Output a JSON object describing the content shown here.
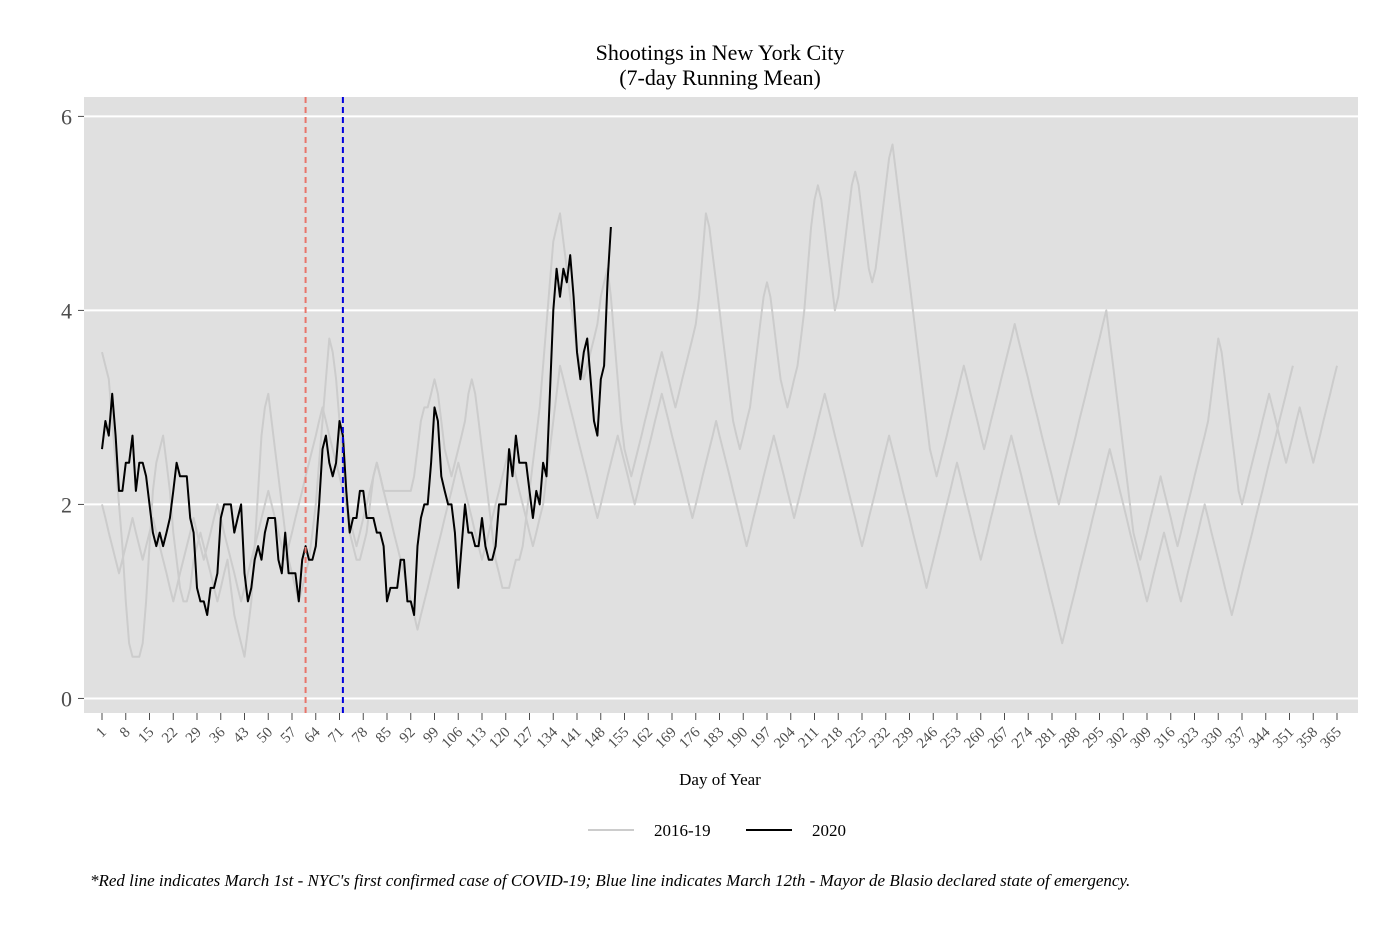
{
  "chart_data": {
    "type": "line",
    "title_line1": "Shootings in New York City",
    "title_line2": "(7-day Running Mean)",
    "xlabel": "Day of Year",
    "ylabel": "",
    "xlim": [
      1,
      365
    ],
    "ylim": [
      -0.15,
      6.2
    ],
    "y_ticks": [
      0,
      2,
      4,
      6
    ],
    "x_tick_start": 1,
    "x_tick_step": 7,
    "x_ticks": [
      1,
      8,
      15,
      22,
      29,
      36,
      43,
      50,
      57,
      64,
      71,
      78,
      85,
      92,
      99,
      106,
      113,
      120,
      127,
      134,
      141,
      148,
      155,
      162,
      169,
      176,
      183,
      190,
      197,
      204,
      211,
      218,
      225,
      232,
      239,
      246,
      253,
      260,
      267,
      274,
      281,
      288,
      295,
      302,
      309,
      316,
      323,
      330,
      337,
      344,
      351,
      358,
      365
    ],
    "grid": true,
    "background": "#e0e0e0",
    "legend_position": "bottom",
    "legend": [
      {
        "label": "2016-19",
        "color": "#cccccc"
      },
      {
        "label": "2020",
        "color": "#000000"
      }
    ],
    "vlines": [
      {
        "x": 61,
        "color": "#e8756b",
        "style": "dashed"
      },
      {
        "x": 72,
        "color": "#0000dd",
        "style": "dashed"
      }
    ],
    "series": [
      {
        "name": "2016-19",
        "color": "#cccccc",
        "y": [
          3.57,
          3.43,
          3.29,
          2.86,
          2.43,
          2.0,
          1.57,
          1.0,
          0.57,
          0.43,
          0.43,
          0.43,
          0.57,
          1.0,
          1.57,
          2.14,
          2.43,
          2.57,
          2.71,
          2.43,
          2.14,
          1.71,
          1.43,
          1.14,
          1.0,
          1.0,
          1.14,
          1.43,
          1.57,
          1.71,
          1.57,
          1.43,
          1.29,
          1.14,
          1.0,
          1.14,
          1.29,
          1.43,
          1.14,
          0.86,
          0.71,
          0.57,
          0.43,
          0.71,
          1.0,
          1.57,
          2.14,
          2.71,
          3.0,
          3.14,
          2.86,
          2.57,
          2.29,
          2.0,
          1.71,
          1.43,
          1.29,
          1.14,
          1.0,
          1.14,
          1.29,
          1.43,
          1.71,
          2.0,
          2.43,
          2.86,
          3.29,
          3.71,
          3.57,
          3.29,
          2.86,
          2.43,
          2.0,
          1.71,
          1.57,
          1.43,
          1.43,
          1.57,
          1.71,
          2.0,
          2.29,
          2.43,
          2.29,
          2.14,
          2.14,
          2.14,
          2.14,
          2.14,
          2.14,
          2.14,
          2.14,
          2.14,
          2.29,
          2.57,
          2.86,
          3.0,
          3.0,
          3.14,
          3.29,
          3.14,
          2.86,
          2.57,
          2.43,
          2.29,
          2.43,
          2.57,
          2.71,
          2.86,
          3.14,
          3.29,
          3.14,
          2.86,
          2.57,
          2.29,
          2.0,
          1.71,
          1.43,
          1.29,
          1.14,
          1.14,
          1.14,
          1.29,
          1.43,
          1.43,
          1.57,
          1.86,
          2.14,
          2.43,
          2.71,
          3.0,
          3.43,
          3.86,
          4.29,
          4.71,
          4.86,
          5.0,
          4.71,
          4.43,
          4.14,
          3.86,
          3.57,
          3.43,
          3.29,
          3.43,
          3.57,
          3.71,
          3.86,
          4.14,
          4.29,
          4.43,
          4.14,
          3.71,
          3.29,
          2.86,
          2.57,
          2.43,
          2.29,
          2.43,
          2.57,
          2.71,
          2.86,
          3.0,
          3.14,
          3.29,
          3.43,
          3.57,
          3.43,
          3.29,
          3.14,
          3.0,
          3.14,
          3.29,
          3.43,
          3.57,
          3.71,
          3.86,
          4.14,
          4.57,
          5.0,
          4.86,
          4.57,
          4.29,
          4.0,
          3.71,
          3.43,
          3.14,
          2.86,
          2.71,
          2.57,
          2.71,
          2.86,
          3.0,
          3.29,
          3.57,
          3.86,
          4.14,
          4.29,
          4.14,
          3.86,
          3.57,
          3.29,
          3.14,
          3.0,
          3.14,
          3.29,
          3.43,
          3.71,
          4.0,
          4.43,
          4.86,
          5.14,
          5.29,
          5.14,
          4.86,
          4.57,
          4.29,
          4.0,
          4.14,
          4.43,
          4.71,
          5.0,
          5.29,
          5.43,
          5.29,
          5.0,
          4.71,
          4.43,
          4.29,
          4.43,
          4.71,
          5.0,
          5.29,
          5.57,
          5.71,
          5.43,
          5.14,
          4.86,
          4.57,
          4.29,
          4.0,
          3.71,
          3.43,
          3.14,
          2.86,
          2.57,
          2.43,
          2.29,
          2.43,
          2.57,
          2.71,
          2.86,
          3.0,
          3.14,
          3.29,
          3.43,
          3.29,
          3.14,
          3.0,
          2.86,
          2.71,
          2.57,
          2.71,
          2.86,
          3.0,
          3.14,
          3.29,
          3.43,
          3.57,
          3.71,
          3.86,
          3.71,
          3.57,
          3.43,
          3.29,
          3.14,
          3.0,
          2.86,
          2.71,
          2.57,
          2.43,
          2.29,
          2.14,
          2.0,
          2.14,
          2.29,
          2.43,
          2.57,
          2.71,
          2.86,
          3.0,
          3.14,
          3.29,
          3.43,
          3.57,
          3.71,
          3.86,
          4.0,
          3.71,
          3.43,
          3.14,
          2.86,
          2.57,
          2.29,
          2.0,
          1.71,
          1.57,
          1.43,
          1.57,
          1.71,
          1.86,
          2.0,
          2.14,
          2.29,
          2.14,
          2.0,
          1.86,
          1.71,
          1.57,
          1.71,
          1.86,
          2.0,
          2.14,
          2.29,
          2.43,
          2.57,
          2.71,
          2.86,
          3.14,
          3.43,
          3.71,
          3.57,
          3.29,
          3.0,
          2.71,
          2.43,
          2.14,
          2.0,
          2.14,
          2.29,
          2.43,
          2.57,
          2.71,
          2.86,
          3.0,
          3.14,
          3.0,
          2.86,
          2.71,
          2.57,
          2.43,
          2.57,
          2.71,
          2.86,
          3.0,
          2.86,
          2.71,
          2.57,
          2.43,
          2.57,
          2.71,
          2.86,
          3.0,
          3.14,
          3.29,
          3.43
        ]
      },
      {
        "name": "2016-19",
        "color": "#cccccc",
        "y": [
          2.0,
          1.86,
          1.71,
          1.57,
          1.43,
          1.29,
          1.43,
          1.57,
          1.71,
          1.86,
          1.71,
          1.57,
          1.43,
          1.57,
          1.71,
          1.86,
          1.71,
          1.57,
          1.43,
          1.29,
          1.14,
          1.0,
          1.14,
          1.29,
          1.43,
          1.57,
          1.71,
          1.86,
          1.71,
          1.57,
          1.43,
          1.57,
          1.71,
          1.86,
          2.0,
          1.86,
          1.71,
          1.57,
          1.43,
          1.29,
          1.14,
          1.0,
          1.14,
          1.29,
          1.43,
          1.57,
          1.71,
          1.86,
          2.0,
          2.14,
          2.0,
          1.86,
          1.71,
          1.57,
          1.43,
          1.57,
          1.71,
          1.86,
          2.0,
          2.14,
          2.29,
          2.43,
          2.57,
          2.71,
          2.86,
          3.0,
          2.86,
          2.71,
          2.57,
          2.43,
          2.29,
          2.14,
          2.0,
          1.86,
          1.71,
          1.57,
          1.71,
          1.86,
          2.0,
          2.14,
          2.29,
          2.43,
          2.29,
          2.14,
          2.0,
          1.86,
          1.71,
          1.57,
          1.43,
          1.29,
          1.14,
          1.0,
          0.86,
          0.71,
          0.86,
          1.0,
          1.14,
          1.29,
          1.43,
          1.57,
          1.71,
          1.86,
          2.0,
          2.14,
          2.29,
          2.43,
          2.29,
          2.14,
          2.0,
          1.86,
          1.71,
          1.57,
          1.43,
          1.57,
          1.71,
          1.86,
          2.0,
          2.14,
          2.29,
          2.43,
          2.57,
          2.43,
          2.29,
          2.14,
          2.0,
          1.86,
          1.71,
          1.57,
          1.71,
          1.86,
          2.0,
          2.29,
          2.57,
          2.86,
          3.14,
          3.43,
          3.29,
          3.14,
          3.0,
          2.86,
          2.71,
          2.57,
          2.43,
          2.29,
          2.14,
          2.0,
          1.86,
          2.0,
          2.14,
          2.29,
          2.43,
          2.57,
          2.71,
          2.57,
          2.43,
          2.29,
          2.14,
          2.0,
          2.14,
          2.29,
          2.43,
          2.57,
          2.71,
          2.86,
          3.0,
          3.14,
          3.0,
          2.86,
          2.71,
          2.57,
          2.43,
          2.29,
          2.14,
          2.0,
          1.86,
          2.0,
          2.14,
          2.29,
          2.43,
          2.57,
          2.71,
          2.86,
          2.71,
          2.57,
          2.43,
          2.29,
          2.14,
          2.0,
          1.86,
          1.71,
          1.57,
          1.71,
          1.86,
          2.0,
          2.14,
          2.29,
          2.43,
          2.57,
          2.71,
          2.57,
          2.43,
          2.29,
          2.14,
          2.0,
          1.86,
          2.0,
          2.14,
          2.29,
          2.43,
          2.57,
          2.71,
          2.86,
          3.0,
          3.14,
          3.0,
          2.86,
          2.71,
          2.57,
          2.43,
          2.29,
          2.14,
          2.0,
          1.86,
          1.71,
          1.57,
          1.71,
          1.86,
          2.0,
          2.14,
          2.29,
          2.43,
          2.57,
          2.71,
          2.57,
          2.43,
          2.29,
          2.14,
          2.0,
          1.86,
          1.71,
          1.57,
          1.43,
          1.29,
          1.14,
          1.29,
          1.43,
          1.57,
          1.71,
          1.86,
          2.0,
          2.14,
          2.29,
          2.43,
          2.29,
          2.14,
          2.0,
          1.86,
          1.71,
          1.57,
          1.43,
          1.57,
          1.71,
          1.86,
          2.0,
          2.14,
          2.29,
          2.43,
          2.57,
          2.71,
          2.57,
          2.43,
          2.29,
          2.14,
          2.0,
          1.86,
          1.71,
          1.57,
          1.43,
          1.29,
          1.14,
          1.0,
          0.86,
          0.71,
          0.57,
          0.71,
          0.86,
          1.0,
          1.14,
          1.29,
          1.43,
          1.57,
          1.71,
          1.86,
          2.0,
          2.14,
          2.29,
          2.43,
          2.57,
          2.43,
          2.29,
          2.14,
          2.0,
          1.86,
          1.71,
          1.57,
          1.43,
          1.29,
          1.14,
          1.0,
          1.14,
          1.29,
          1.43,
          1.57,
          1.71,
          1.57,
          1.43,
          1.29,
          1.14,
          1.0,
          1.14,
          1.29,
          1.43,
          1.57,
          1.71,
          1.86,
          2.0,
          1.86,
          1.71,
          1.57,
          1.43,
          1.29,
          1.14,
          1.0,
          0.86,
          1.0,
          1.14,
          1.29,
          1.43,
          1.57,
          1.71,
          1.86,
          2.0,
          2.14,
          2.29,
          2.43,
          2.57,
          2.71,
          2.86,
          3.0,
          3.14,
          3.29,
          3.43
        ]
      },
      {
        "name": "2020",
        "color": "#000000",
        "y": [
          2.57,
          2.86,
          2.71,
          3.14,
          2.71,
          2.14,
          2.14,
          2.43,
          2.43,
          2.71,
          2.14,
          2.43,
          2.43,
          2.29,
          2.0,
          1.71,
          1.57,
          1.71,
          1.57,
          1.71,
          1.86,
          2.14,
          2.43,
          2.29,
          2.29,
          2.29,
          1.86,
          1.71,
          1.14,
          1.0,
          1.0,
          0.86,
          1.14,
          1.14,
          1.29,
          1.86,
          2.0,
          2.0,
          2.0,
          1.71,
          1.86,
          2.0,
          1.29,
          1.0,
          1.14,
          1.43,
          1.57,
          1.43,
          1.71,
          1.86,
          1.86,
          1.86,
          1.43,
          1.29,
          1.71,
          1.29,
          1.29,
          1.29,
          1.0,
          1.43,
          1.57,
          1.43,
          1.43,
          1.57,
          2.0,
          2.57,
          2.71,
          2.43,
          2.29,
          2.43,
          2.86,
          2.71,
          2.14,
          1.71,
          1.86,
          1.86,
          2.14,
          2.14,
          1.86,
          1.86,
          1.86,
          1.71,
          1.71,
          1.57,
          1.0,
          1.14,
          1.14,
          1.14,
          1.43,
          1.43,
          1.0,
          1.0,
          0.86,
          1.57,
          1.86,
          2.0,
          2.0,
          2.43,
          3.0,
          2.86,
          2.29,
          2.14,
          2.0,
          2.0,
          1.71,
          1.14,
          1.57,
          2.0,
          1.71,
          1.71,
          1.57,
          1.57,
          1.86,
          1.57,
          1.43,
          1.43,
          1.57,
          2.0,
          2.0,
          2.0,
          2.57,
          2.29,
          2.71,
          2.43,
          2.43,
          2.43,
          2.14,
          1.86,
          2.14,
          2.0,
          2.43,
          2.29,
          3.14,
          4.0,
          4.43,
          4.14,
          4.43,
          4.29,
          4.57,
          4.14,
          3.57,
          3.29,
          3.57,
          3.71,
          3.29,
          2.86,
          2.71,
          3.29,
          3.43,
          4.29,
          4.86
        ]
      }
    ]
  },
  "caption": "*Red line indicates March 1st - NYC's first confirmed case of COVID-19; Blue line indicates March 12th - Mayor de Blasio declared state of emergency."
}
